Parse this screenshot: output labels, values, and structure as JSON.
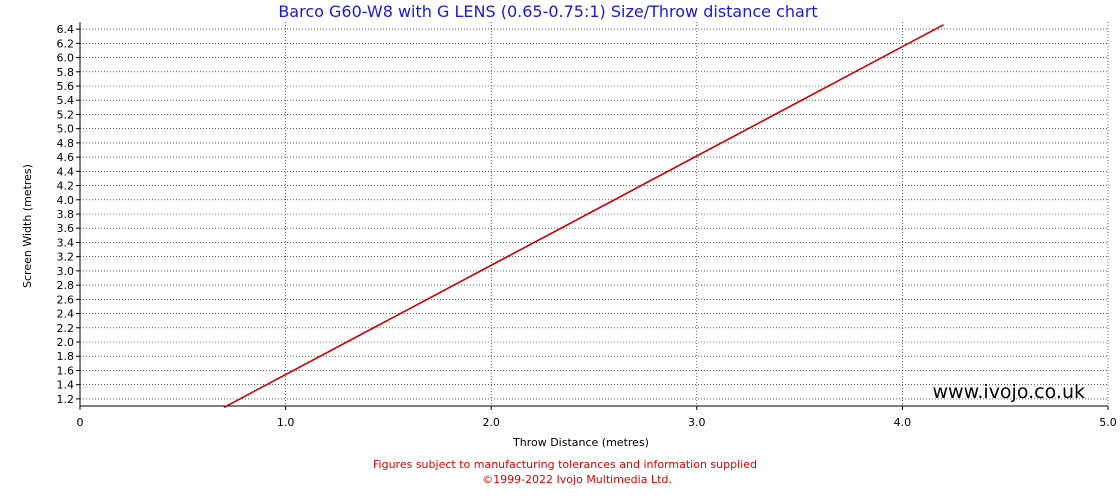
{
  "chart_data": {
    "type": "line",
    "title": "Barco G60-W8 with G LENS (0.65-0.75:1) Size/Throw distance chart",
    "xlabel": "Throw Distance (metres)",
    "ylabel": "Screen Width (metres)",
    "xlim": [
      0,
      5.0
    ],
    "ylim": [
      1.1,
      6.5
    ],
    "x_ticks": [
      "0",
      "1.0",
      "2.0",
      "3.0",
      "4.0",
      "5.0"
    ],
    "x_tick_values": [
      0,
      1,
      2,
      3,
      4,
      5
    ],
    "y_ticks": [
      "1.2",
      "1.4",
      "1.6",
      "1.8",
      "2.0",
      "2.2",
      "2.4",
      "2.6",
      "2.8",
      "3.0",
      "3.2",
      "3.4",
      "3.6",
      "3.8",
      "4.0",
      "4.2",
      "4.4",
      "4.6",
      "4.8",
      "5.0",
      "5.2",
      "5.4",
      "5.6",
      "5.8",
      "6.0",
      "6.2",
      "6.4"
    ],
    "y_tick_values": [
      1.2,
      1.4,
      1.6,
      1.8,
      2.0,
      2.2,
      2.4,
      2.6,
      2.8,
      3.0,
      3.2,
      3.4,
      3.6,
      3.8,
      4.0,
      4.2,
      4.4,
      4.6,
      4.8,
      5.0,
      5.2,
      5.4,
      5.6,
      5.8,
      6.0,
      6.2,
      6.4
    ],
    "grid": true,
    "series": [
      {
        "color": "#cc0000",
        "x": [
          0.7,
          4.2
        ],
        "y": [
          1.08,
          6.46
        ]
      }
    ]
  },
  "watermark": "www.ivojo.co.uk",
  "footer": {
    "line1": "Figures subject to manufacturing tolerances and information supplied",
    "line2": "©1999-2022 Ivojo Multimedia Ltd."
  },
  "colors": {
    "title": "#1a1adc",
    "line": "#cc0000",
    "footer": "#e00000"
  }
}
